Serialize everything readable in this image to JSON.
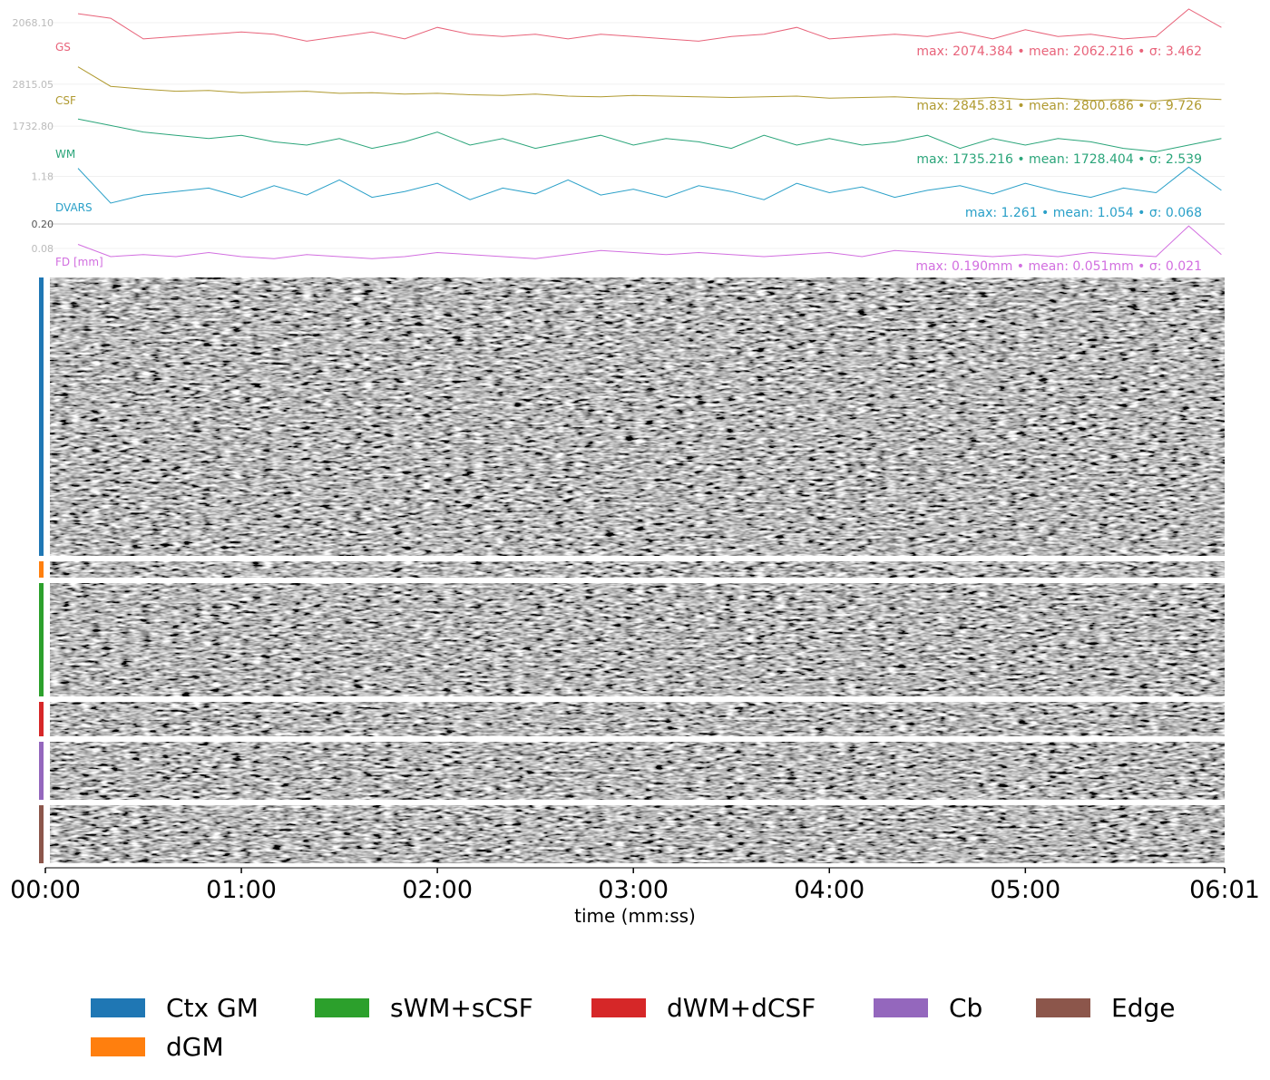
{
  "chart_data": [
    {
      "type": "line",
      "name": "GS",
      "color": "#e8637a",
      "stats": "max: 2074.384 • mean: 2062.216 • σ: 3.462",
      "x": [
        10,
        20,
        30,
        40,
        50,
        60,
        70,
        80,
        90,
        100,
        110,
        120,
        130,
        140,
        150,
        160,
        170,
        180,
        190,
        200,
        210,
        220,
        230,
        240,
        250,
        260,
        270,
        280,
        290,
        300,
        310,
        320,
        330,
        340,
        350,
        360
      ],
      "values": [
        2072,
        2070,
        2061,
        2062,
        2063,
        2064,
        2063,
        2060,
        2062,
        2064,
        2061,
        2066,
        2063,
        2062,
        2063,
        2061,
        2063,
        2062,
        2061,
        2060,
        2062,
        2063,
        2066,
        2061,
        2062,
        2063,
        2062,
        2064,
        2061,
        2065,
        2062,
        2063,
        2061,
        2062,
        2074,
        2066
      ],
      "ylim": [
        2055,
        2076
      ],
      "yticks": [
        {
          "value": 2068.1,
          "label": "2068.10"
        }
      ]
    },
    {
      "type": "line",
      "name": "CSF",
      "color": "#b09a30",
      "stats": "max: 2845.831 • mean: 2800.686 • σ: 9.726",
      "x": [
        10,
        20,
        30,
        40,
        50,
        60,
        70,
        80,
        90,
        100,
        110,
        120,
        130,
        140,
        150,
        160,
        170,
        180,
        190,
        200,
        210,
        220,
        230,
        240,
        250,
        260,
        270,
        280,
        290,
        300,
        310,
        320,
        330,
        340,
        350,
        360
      ],
      "values": [
        2840,
        2812,
        2808,
        2805,
        2806,
        2803,
        2804,
        2805,
        2802,
        2803,
        2801,
        2802,
        2800,
        2799,
        2801,
        2798,
        2797,
        2799,
        2798,
        2797,
        2796,
        2797,
        2798,
        2795,
        2796,
        2797,
        2795,
        2794,
        2796,
        2793,
        2795,
        2792,
        2793,
        2791,
        2795,
        2793
      ],
      "ylim": [
        2785,
        2850
      ],
      "yticks": [
        {
          "value": 2815.05,
          "label": "2815.05"
        }
      ]
    },
    {
      "type": "line",
      "name": "WM",
      "color": "#2ba57a",
      "stats": "max: 1735.216 • mean: 1728.404 • σ: 2.539",
      "x": [
        10,
        20,
        30,
        40,
        50,
        60,
        70,
        80,
        90,
        100,
        110,
        120,
        130,
        140,
        150,
        160,
        170,
        180,
        190,
        200,
        210,
        220,
        230,
        240,
        250,
        260,
        270,
        280,
        290,
        300,
        310,
        320,
        330,
        340,
        350,
        360
      ],
      "values": [
        1735,
        1733,
        1731,
        1730,
        1729,
        1730,
        1728,
        1727,
        1729,
        1726,
        1728,
        1731,
        1727,
        1729,
        1726,
        1728,
        1730,
        1727,
        1729,
        1728,
        1726,
        1730,
        1727,
        1729,
        1727,
        1728,
        1730,
        1726,
        1729,
        1727,
        1729,
        1728,
        1726,
        1725,
        1727,
        1729
      ],
      "ylim": [
        1722,
        1737
      ],
      "yticks": [
        {
          "value": 1732.8,
          "label": "1732.80"
        }
      ]
    },
    {
      "type": "line",
      "name": "DVARS",
      "color": "#2aa0c8",
      "stats": "max: 1.261 • mean: 1.054 • σ: 0.068",
      "x": [
        10,
        20,
        30,
        40,
        50,
        60,
        70,
        80,
        90,
        100,
        110,
        120,
        130,
        140,
        150,
        160,
        170,
        180,
        190,
        200,
        210,
        220,
        230,
        240,
        250,
        260,
        270,
        280,
        290,
        300,
        310,
        320,
        330,
        340,
        350,
        360
      ],
      "values": [
        1.25,
        0.95,
        1.02,
        1.05,
        1.08,
        1.0,
        1.1,
        1.02,
        1.15,
        1.0,
        1.05,
        1.12,
        0.98,
        1.08,
        1.03,
        1.15,
        1.02,
        1.07,
        1.0,
        1.1,
        1.05,
        0.98,
        1.12,
        1.04,
        1.09,
        1.0,
        1.06,
        1.1,
        1.03,
        1.12,
        1.05,
        1.0,
        1.08,
        1.04,
        1.26,
        1.06
      ],
      "ylim": [
        0.88,
        1.27
      ],
      "yticks": [
        {
          "value": 1.18,
          "label": "1.18"
        }
      ]
    },
    {
      "type": "line",
      "name": "FD [mm]",
      "color": "#d26fe0",
      "stats": "max: 0.190mm • mean: 0.051mm • σ: 0.021",
      "x": [
        10,
        20,
        30,
        40,
        50,
        60,
        70,
        80,
        90,
        100,
        110,
        120,
        130,
        140,
        150,
        160,
        170,
        180,
        190,
        200,
        210,
        220,
        230,
        240,
        250,
        260,
        270,
        280,
        290,
        300,
        310,
        320,
        330,
        340,
        350,
        360
      ],
      "values": [
        0.1,
        0.04,
        0.05,
        0.04,
        0.06,
        0.04,
        0.03,
        0.05,
        0.04,
        0.03,
        0.04,
        0.06,
        0.05,
        0.04,
        0.03,
        0.05,
        0.07,
        0.06,
        0.05,
        0.06,
        0.05,
        0.04,
        0.05,
        0.06,
        0.04,
        0.07,
        0.06,
        0.05,
        0.04,
        0.05,
        0.04,
        0.06,
        0.05,
        0.04,
        0.19,
        0.05
      ],
      "ylim": [
        0,
        0.222
      ],
      "yticks": [
        {
          "value": 0.2,
          "label": "0.20"
        },
        {
          "value": 0.08,
          "label": "0.08"
        }
      ]
    },
    {
      "type": "carpet",
      "xlabel": "time (mm:ss)",
      "xlim": [
        0,
        361
      ],
      "xticks": [
        {
          "value": 0,
          "label": "00:00"
        },
        {
          "value": 60,
          "label": "01:00"
        },
        {
          "value": 120,
          "label": "02:00"
        },
        {
          "value": 180,
          "label": "03:00"
        },
        {
          "value": 240,
          "label": "04:00"
        },
        {
          "value": 300,
          "label": "05:00"
        },
        {
          "value": 361,
          "label": "06:01"
        }
      ],
      "segments": [
        {
          "name": "Ctx GM",
          "color": "#1f77b4"
        },
        {
          "name": "dGM",
          "color": "#ff7f0e"
        },
        {
          "name": "sWM+sCSF",
          "color": "#2ca02c"
        },
        {
          "name": "dWM+dCSF",
          "color": "#d62728"
        },
        {
          "name": "Cb",
          "color": "#9467bd"
        },
        {
          "name": "Edge",
          "color": "#8c564b"
        }
      ]
    }
  ]
}
